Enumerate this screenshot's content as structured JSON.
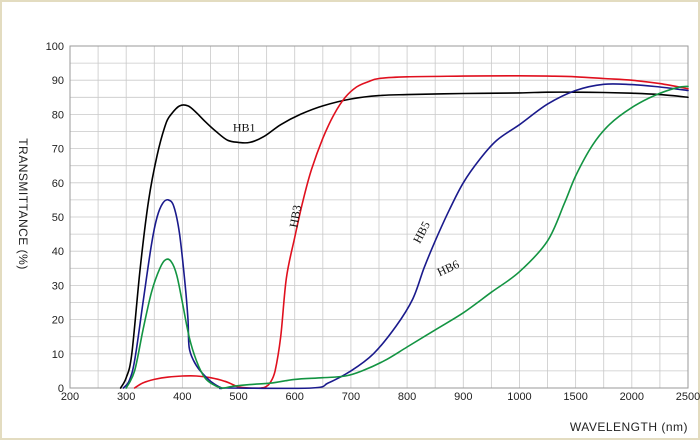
{
  "chart_data": {
    "type": "line",
    "xlabel": "WAVELENGTH (nm)",
    "ylabel": "TRANSMITTANCE    (%)",
    "x_ticks": [
      "200",
      "300",
      "400",
      "500",
      "600",
      "700",
      "800",
      "900",
      "1000",
      "1500",
      "2000",
      "2500"
    ],
    "y_ticks": [
      "0",
      "10",
      "20",
      "30",
      "40",
      "50",
      "60",
      "70",
      "80",
      "90",
      "100"
    ],
    "ylim": [
      0,
      100
    ],
    "grid": true,
    "x_scale": "piecewise: 200-1000 nm at 100 nm per major division, 1000-2500 nm at 500 nm per major division",
    "series": [
      {
        "name": "HB1",
        "color": "#000000",
        "points": [
          [
            290,
            0
          ],
          [
            300,
            3
          ],
          [
            310,
            10
          ],
          [
            325,
            35
          ],
          [
            340,
            55
          ],
          [
            355,
            68
          ],
          [
            370,
            77
          ],
          [
            380,
            80
          ],
          [
            395,
            82.5
          ],
          [
            410,
            82.5
          ],
          [
            425,
            80.5
          ],
          [
            440,
            78
          ],
          [
            460,
            75
          ],
          [
            480,
            72.5
          ],
          [
            500,
            71.8
          ],
          [
            520,
            71.8
          ],
          [
            545,
            73.5
          ],
          [
            575,
            77
          ],
          [
            610,
            80
          ],
          [
            650,
            82.5
          ],
          [
            700,
            84.5
          ],
          [
            750,
            85.5
          ],
          [
            800,
            85.8
          ],
          [
            900,
            86.1
          ],
          [
            1000,
            86.3
          ],
          [
            1250,
            86.5
          ],
          [
            1500,
            86.5
          ],
          [
            1750,
            86.4
          ],
          [
            2000,
            86.2
          ],
          [
            2250,
            85.8
          ],
          [
            2500,
            85
          ]
        ],
        "label_at": [
          510,
          75
        ]
      },
      {
        "name": "HB3",
        "color": "#e0101e",
        "points": [
          [
            315,
            0
          ],
          [
            330,
            1.5
          ],
          [
            350,
            2.5
          ],
          [
            375,
            3.2
          ],
          [
            400,
            3.5
          ],
          [
            425,
            3.5
          ],
          [
            450,
            3
          ],
          [
            475,
            2
          ],
          [
            490,
            1
          ],
          [
            500,
            0.3
          ],
          [
            520,
            0
          ],
          [
            540,
            0
          ],
          [
            548,
            0.3
          ],
          [
            556,
            1.5
          ],
          [
            565,
            5
          ],
          [
            575,
            15
          ],
          [
            585,
            32
          ],
          [
            600,
            44
          ],
          [
            615,
            55
          ],
          [
            630,
            64
          ],
          [
            650,
            73
          ],
          [
            670,
            80
          ],
          [
            690,
            85
          ],
          [
            710,
            88
          ],
          [
            730,
            89.5
          ],
          [
            750,
            90.5
          ],
          [
            800,
            91
          ],
          [
            900,
            91.2
          ],
          [
            1000,
            91.3
          ],
          [
            1250,
            91.2
          ],
          [
            1500,
            91
          ],
          [
            1750,
            90.5
          ],
          [
            2000,
            90
          ],
          [
            2250,
            89
          ],
          [
            2500,
            87.5
          ]
        ],
        "label_at": [
          608,
          50
        ]
      },
      {
        "name": "HB5",
        "color": "#1a1a8c",
        "points": [
          [
            295,
            0
          ],
          [
            305,
            2
          ],
          [
            315,
            8
          ],
          [
            330,
            25
          ],
          [
            345,
            42
          ],
          [
            355,
            50
          ],
          [
            365,
            54
          ],
          [
            375,
            55
          ],
          [
            385,
            53
          ],
          [
            395,
            45
          ],
          [
            405,
            30
          ],
          [
            410,
            20
          ],
          [
            412,
            12
          ],
          [
            420,
            8
          ],
          [
            432,
            5
          ],
          [
            450,
            2
          ],
          [
            470,
            0
          ],
          [
            480,
            0
          ],
          [
            630,
            0
          ],
          [
            660,
            1.5
          ],
          [
            700,
            5
          ],
          [
            740,
            10
          ],
          [
            780,
            18
          ],
          [
            810,
            26
          ],
          [
            830,
            35
          ],
          [
            850,
            43
          ],
          [
            875,
            52
          ],
          [
            900,
            60
          ],
          [
            930,
            67
          ],
          [
            960,
            72.5
          ],
          [
            1000,
            77
          ],
          [
            1250,
            83
          ],
          [
            1500,
            87
          ],
          [
            1750,
            88.8
          ],
          [
            2000,
            88.7
          ],
          [
            2250,
            88
          ],
          [
            2500,
            87
          ]
        ],
        "label_at": [
          832,
          45
        ]
      },
      {
        "name": "HB6",
        "color": "#139442",
        "points": [
          [
            300,
            0
          ],
          [
            315,
            5
          ],
          [
            330,
            17
          ],
          [
            345,
            28
          ],
          [
            360,
            35
          ],
          [
            370,
            37.5
          ],
          [
            380,
            37
          ],
          [
            390,
            33
          ],
          [
            400,
            25
          ],
          [
            412,
            15
          ],
          [
            425,
            8
          ],
          [
            440,
            3
          ],
          [
            455,
            1
          ],
          [
            470,
            0
          ],
          [
            490,
            0.5
          ],
          [
            520,
            1
          ],
          [
            560,
            1.5
          ],
          [
            600,
            2.5
          ],
          [
            650,
            3
          ],
          [
            690,
            3.5
          ],
          [
            720,
            5
          ],
          [
            760,
            8
          ],
          [
            800,
            12
          ],
          [
            850,
            17
          ],
          [
            900,
            22
          ],
          [
            950,
            28
          ],
          [
            1000,
            34
          ],
          [
            1250,
            43
          ],
          [
            1400,
            54
          ],
          [
            1500,
            62
          ],
          [
            1650,
            71
          ],
          [
            1800,
            77
          ],
          [
            2000,
            82
          ],
          [
            2200,
            85.5
          ],
          [
            2400,
            87.8
          ],
          [
            2500,
            88.2
          ]
        ],
        "label_at": [
          876,
          34
        ]
      }
    ]
  }
}
